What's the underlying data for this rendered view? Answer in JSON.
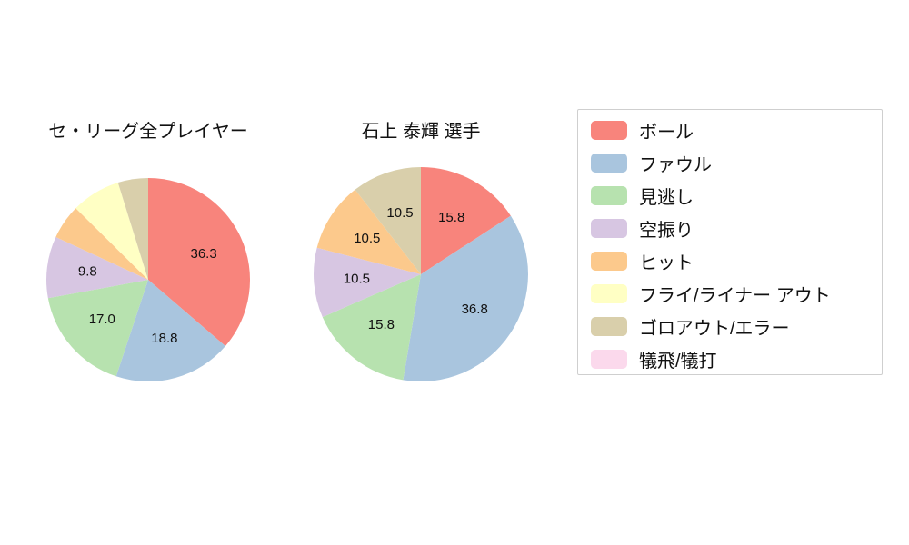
{
  "page": {
    "background": "#ffffff"
  },
  "legend": {
    "border_color": "#cfcfcf",
    "items": [
      {
        "label": "ボール",
        "color": "#f8847c"
      },
      {
        "label": "ファウル",
        "color": "#a9c5de"
      },
      {
        "label": "見逃し",
        "color": "#b7e2af"
      },
      {
        "label": "空振り",
        "color": "#d7c6e2"
      },
      {
        "label": "ヒット",
        "color": "#fcc98c"
      },
      {
        "label": "フライ/ライナー アウト",
        "color": "#ffffc4"
      },
      {
        "label": "ゴロアウト/エラー",
        "color": "#d9cfab"
      },
      {
        "label": "犠飛/犠打",
        "color": "#fbd9ec"
      }
    ]
  },
  "chart_data": [
    {
      "type": "pie",
      "title": "セ・リーグ全プレイヤー",
      "units": "percent",
      "start_angle": "top",
      "direction": "clockwise",
      "radius": 112,
      "slices": [
        {
          "name": "ボール",
          "value": 36.3,
          "display": "36.3",
          "label_visible": true,
          "color": "#f8847c"
        },
        {
          "name": "ファウル",
          "value": 18.8,
          "display": "18.8",
          "label_visible": true,
          "color": "#a9c5de"
        },
        {
          "name": "見逃し",
          "value": 17.0,
          "display": "17.0",
          "label_visible": true,
          "color": "#b7e2af"
        },
        {
          "name": "空振り",
          "value": 9.8,
          "display": "9.8",
          "label_visible": true,
          "color": "#d7c6e2"
        },
        {
          "name": "ヒット",
          "value": 5.5,
          "display": "",
          "label_visible": false,
          "color": "#fcc98c"
        },
        {
          "name": "フライ/ライナー アウト",
          "value": 7.8,
          "display": "",
          "label_visible": false,
          "color": "#ffffc4"
        },
        {
          "name": "ゴロアウト/エラー",
          "value": 4.8,
          "display": "",
          "label_visible": false,
          "color": "#d9cfab"
        }
      ]
    },
    {
      "type": "pie",
      "title": "石上 泰輝  選手",
      "units": "percent",
      "start_angle": "top",
      "direction": "clockwise",
      "radius": 118,
      "slices": [
        {
          "name": "ボール",
          "value": 15.8,
          "display": "15.8",
          "label_visible": true,
          "color": "#f8847c"
        },
        {
          "name": "ファウル",
          "value": 36.8,
          "display": "36.8",
          "label_visible": true,
          "color": "#a9c5de"
        },
        {
          "name": "見逃し",
          "value": 15.8,
          "display": "15.8",
          "label_visible": true,
          "color": "#b7e2af"
        },
        {
          "name": "空振り",
          "value": 10.5,
          "display": "10.5",
          "label_visible": true,
          "color": "#d7c6e2"
        },
        {
          "name": "ヒット",
          "value": 10.5,
          "display": "10.5",
          "label_visible": true,
          "color": "#fcc98c"
        },
        {
          "name": "ゴロアウト/エラー",
          "value": 10.5,
          "display": "10.5",
          "label_visible": true,
          "color": "#d9cfab"
        }
      ]
    }
  ]
}
